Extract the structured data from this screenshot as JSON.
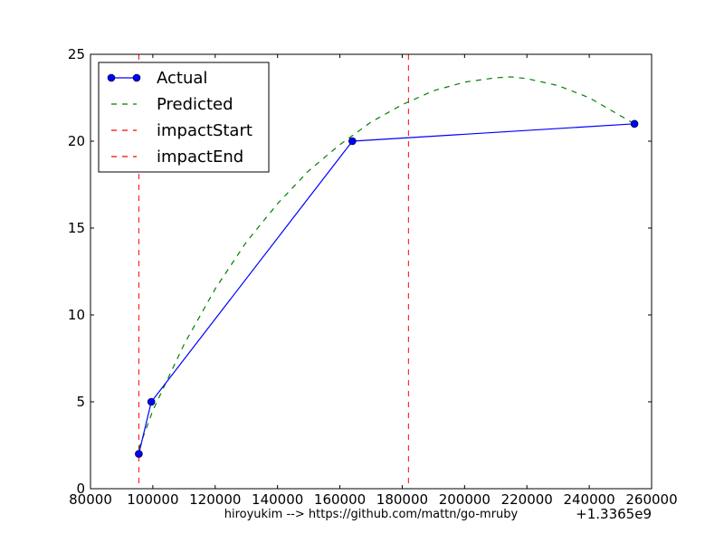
{
  "chart_data": {
    "type": "line",
    "x_offset_label": "+1.3365e9",
    "xlim": [
      80000,
      260000
    ],
    "ylim": [
      0,
      25
    ],
    "x_ticks": [
      80000,
      100000,
      120000,
      140000,
      160000,
      180000,
      200000,
      220000,
      240000,
      260000
    ],
    "y_ticks": [
      0,
      5,
      10,
      15,
      20,
      25
    ],
    "grid": false,
    "legend_position": "upper-left",
    "series": [
      {
        "name": "Actual",
        "style": "solid-with-markers",
        "color": "#0000ff",
        "x": [
          95500,
          99500,
          164000,
          254500
        ],
        "y": [
          2,
          5,
          20,
          21
        ]
      },
      {
        "name": "Predicted",
        "style": "dashed",
        "color": "#008000",
        "x": [
          95500,
          100000,
          110000,
          120000,
          130000,
          140000,
          150000,
          160000,
          170000,
          180000,
          190000,
          200000,
          210000,
          215000,
          220000,
          230000,
          240000,
          254500
        ],
        "y": [
          2.3,
          4.5,
          8.3,
          11.5,
          14.2,
          16.4,
          18.3,
          19.8,
          21.1,
          22.1,
          22.9,
          23.4,
          23.65,
          23.7,
          23.6,
          23.2,
          22.5,
          21.0
        ]
      }
    ],
    "vlines": [
      {
        "name": "impactStart",
        "x": 95500,
        "color": "#ff0000",
        "style": "dashed"
      },
      {
        "name": "impactEnd",
        "x": 182000,
        "color": "#ff0000",
        "style": "dashed"
      }
    ]
  },
  "footer_text": "hiroyukim --> https://github.com/mattn/go-mruby"
}
